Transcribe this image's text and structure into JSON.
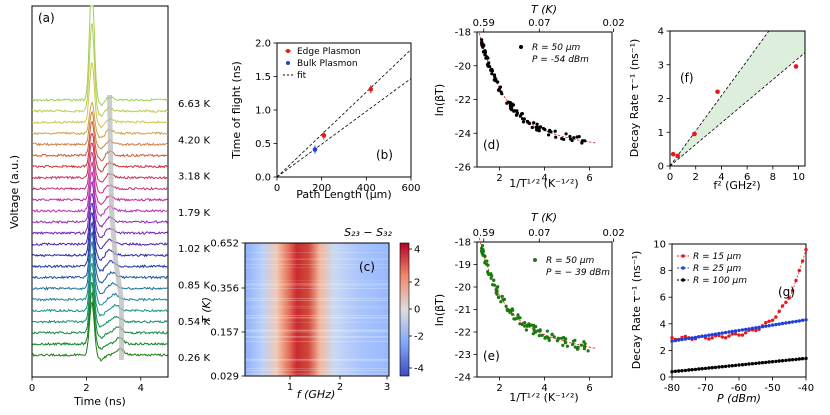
{
  "chart_data": [
    {
      "id": "a",
      "type": "line",
      "panel_label": "(a)",
      "xlabel": "Time (ns)",
      "ylabel": "Voltage (a.u.)",
      "xlim": [
        0,
        5
      ],
      "xticks": [
        "0",
        "2",
        "4"
      ],
      "temperature_labels": [
        "6.63 K",
        "4.20 K",
        "3.18 K",
        "1.79 K",
        "1.02 K",
        "0.85 K",
        "0.54 K",
        "0.26 K"
      ],
      "trace_count": 24,
      "peak_time_ns": 2.2
    },
    {
      "id": "b",
      "type": "scatter",
      "panel_label": "(b)",
      "xlabel": "Path Length (μm)",
      "ylabel": "Time of flight (ns)",
      "xlim": [
        0,
        600
      ],
      "ylim": [
        0,
        2
      ],
      "xticks": [
        "0",
        "200",
        "400",
        "600"
      ],
      "yticks": [
        "0.0",
        "0.5",
        "1.0",
        "1.5",
        "2.0"
      ],
      "legend": [
        "Edge Plasmon",
        "Bulk Plasmon",
        "fit"
      ],
      "series": [
        {
          "name": "Edge Plasmon",
          "color": "#e41a1c",
          "x": [
            210,
            420
          ],
          "y": [
            0.62,
            1.31
          ]
        },
        {
          "name": "Bulk Plasmon",
          "color": "#1f3fd8",
          "x": [
            170
          ],
          "y": [
            0.41
          ]
        }
      ],
      "fits": [
        {
          "slope": 0.00317
        },
        {
          "slope": 0.00245
        }
      ]
    },
    {
      "id": "c",
      "type": "heatmap",
      "panel_label": "(c)",
      "xlabel": "f (GHz)",
      "ylabel": "T (K)",
      "colorbar_label": "S₂₃ − S₃₂",
      "xticks": [
        "1",
        "2",
        "3"
      ],
      "yticks": [
        "0.029",
        "0.157",
        "0.356",
        "0.652"
      ],
      "cbar_ticks": [
        "4",
        "2",
        "0",
        "-2",
        "-4"
      ],
      "clim": [
        -5,
        5
      ]
    },
    {
      "id": "d",
      "type": "scatter",
      "panel_label": "(d)",
      "xlabel": "1/T¹ᐟ² (K⁻¹ᐟ²)",
      "ylabel": "ln(βT)",
      "top_label": "T (K)",
      "top_ticks": [
        "0.59",
        "0.07",
        "0.02"
      ],
      "xlim": [
        1,
        7
      ],
      "ylim": [
        -26,
        -18
      ],
      "xticks": [
        "2",
        "4",
        "6"
      ],
      "yticks": [
        "-18",
        "-20",
        "-22",
        "-24",
        "-26"
      ],
      "legend": [
        "R = 50 μm",
        "P = -54 dBm"
      ],
      "fit": {
        "a": 5.8,
        "b": 1.15,
        "c": -24.6,
        "d": 0.15
      },
      "point_color": "#000000"
    },
    {
      "id": "e",
      "type": "scatter",
      "panel_label": "(e)",
      "xlabel": "1/T¹ᐟ² (K⁻¹ᐟ²)",
      "ylabel": "ln(βT)",
      "top_label": "T (K)",
      "top_ticks": [
        "0.59",
        "0.07",
        "0.02"
      ],
      "xlim": [
        1,
        7
      ],
      "ylim": [
        -24,
        -18
      ],
      "xticks": [
        "2",
        "4",
        "6"
      ],
      "yticks": [
        "-18",
        "-19",
        "-20",
        "-21",
        "-22",
        "-23",
        "-24"
      ],
      "legend": [
        "R = 50 μm",
        "P = − 39 dBm"
      ],
      "fit": {
        "a": 4.0,
        "b": 1.0,
        "c": -22.7,
        "d": 0.18
      },
      "point_color": "#1a7a0d"
    },
    {
      "id": "f",
      "type": "scatter",
      "panel_label": "(f)",
      "xlabel": "f² (GHz²)",
      "ylabel": "Decay Rate τ⁻¹ (ns⁻¹)",
      "xlim": [
        0,
        10.5
      ],
      "ylim": [
        0,
        4
      ],
      "xticks": [
        "0",
        "2",
        "4",
        "6",
        "8",
        "10"
      ],
      "yticks": [
        "0",
        "1",
        "2",
        "3",
        "4"
      ],
      "x": [
        0.25,
        0.6,
        1.9,
        3.7,
        9.8
      ],
      "y": [
        0.35,
        0.3,
        0.95,
        2.2,
        2.95
      ],
      "band_slopes": [
        0.52,
        0.32
      ]
    },
    {
      "id": "g",
      "type": "line",
      "panel_label": "(g)",
      "xlabel": "P (dBm)",
      "ylabel": "Decay Rate τ⁻¹ (ns⁻¹)",
      "xlim": [
        -80,
        -40
      ],
      "ylim": [
        0,
        10
      ],
      "xticks": [
        "-80",
        "-70",
        "-60",
        "-50",
        "-40"
      ],
      "yticks": [
        "0",
        "2",
        "4",
        "6",
        "8",
        "10"
      ],
      "series": [
        {
          "name": "R = 15 μm",
          "color": "#e41a1c"
        },
        {
          "name": "R = 25 μm",
          "color": "#1f3fd8"
        },
        {
          "name": "R = 100 μm",
          "color": "#000000"
        }
      ]
    }
  ]
}
